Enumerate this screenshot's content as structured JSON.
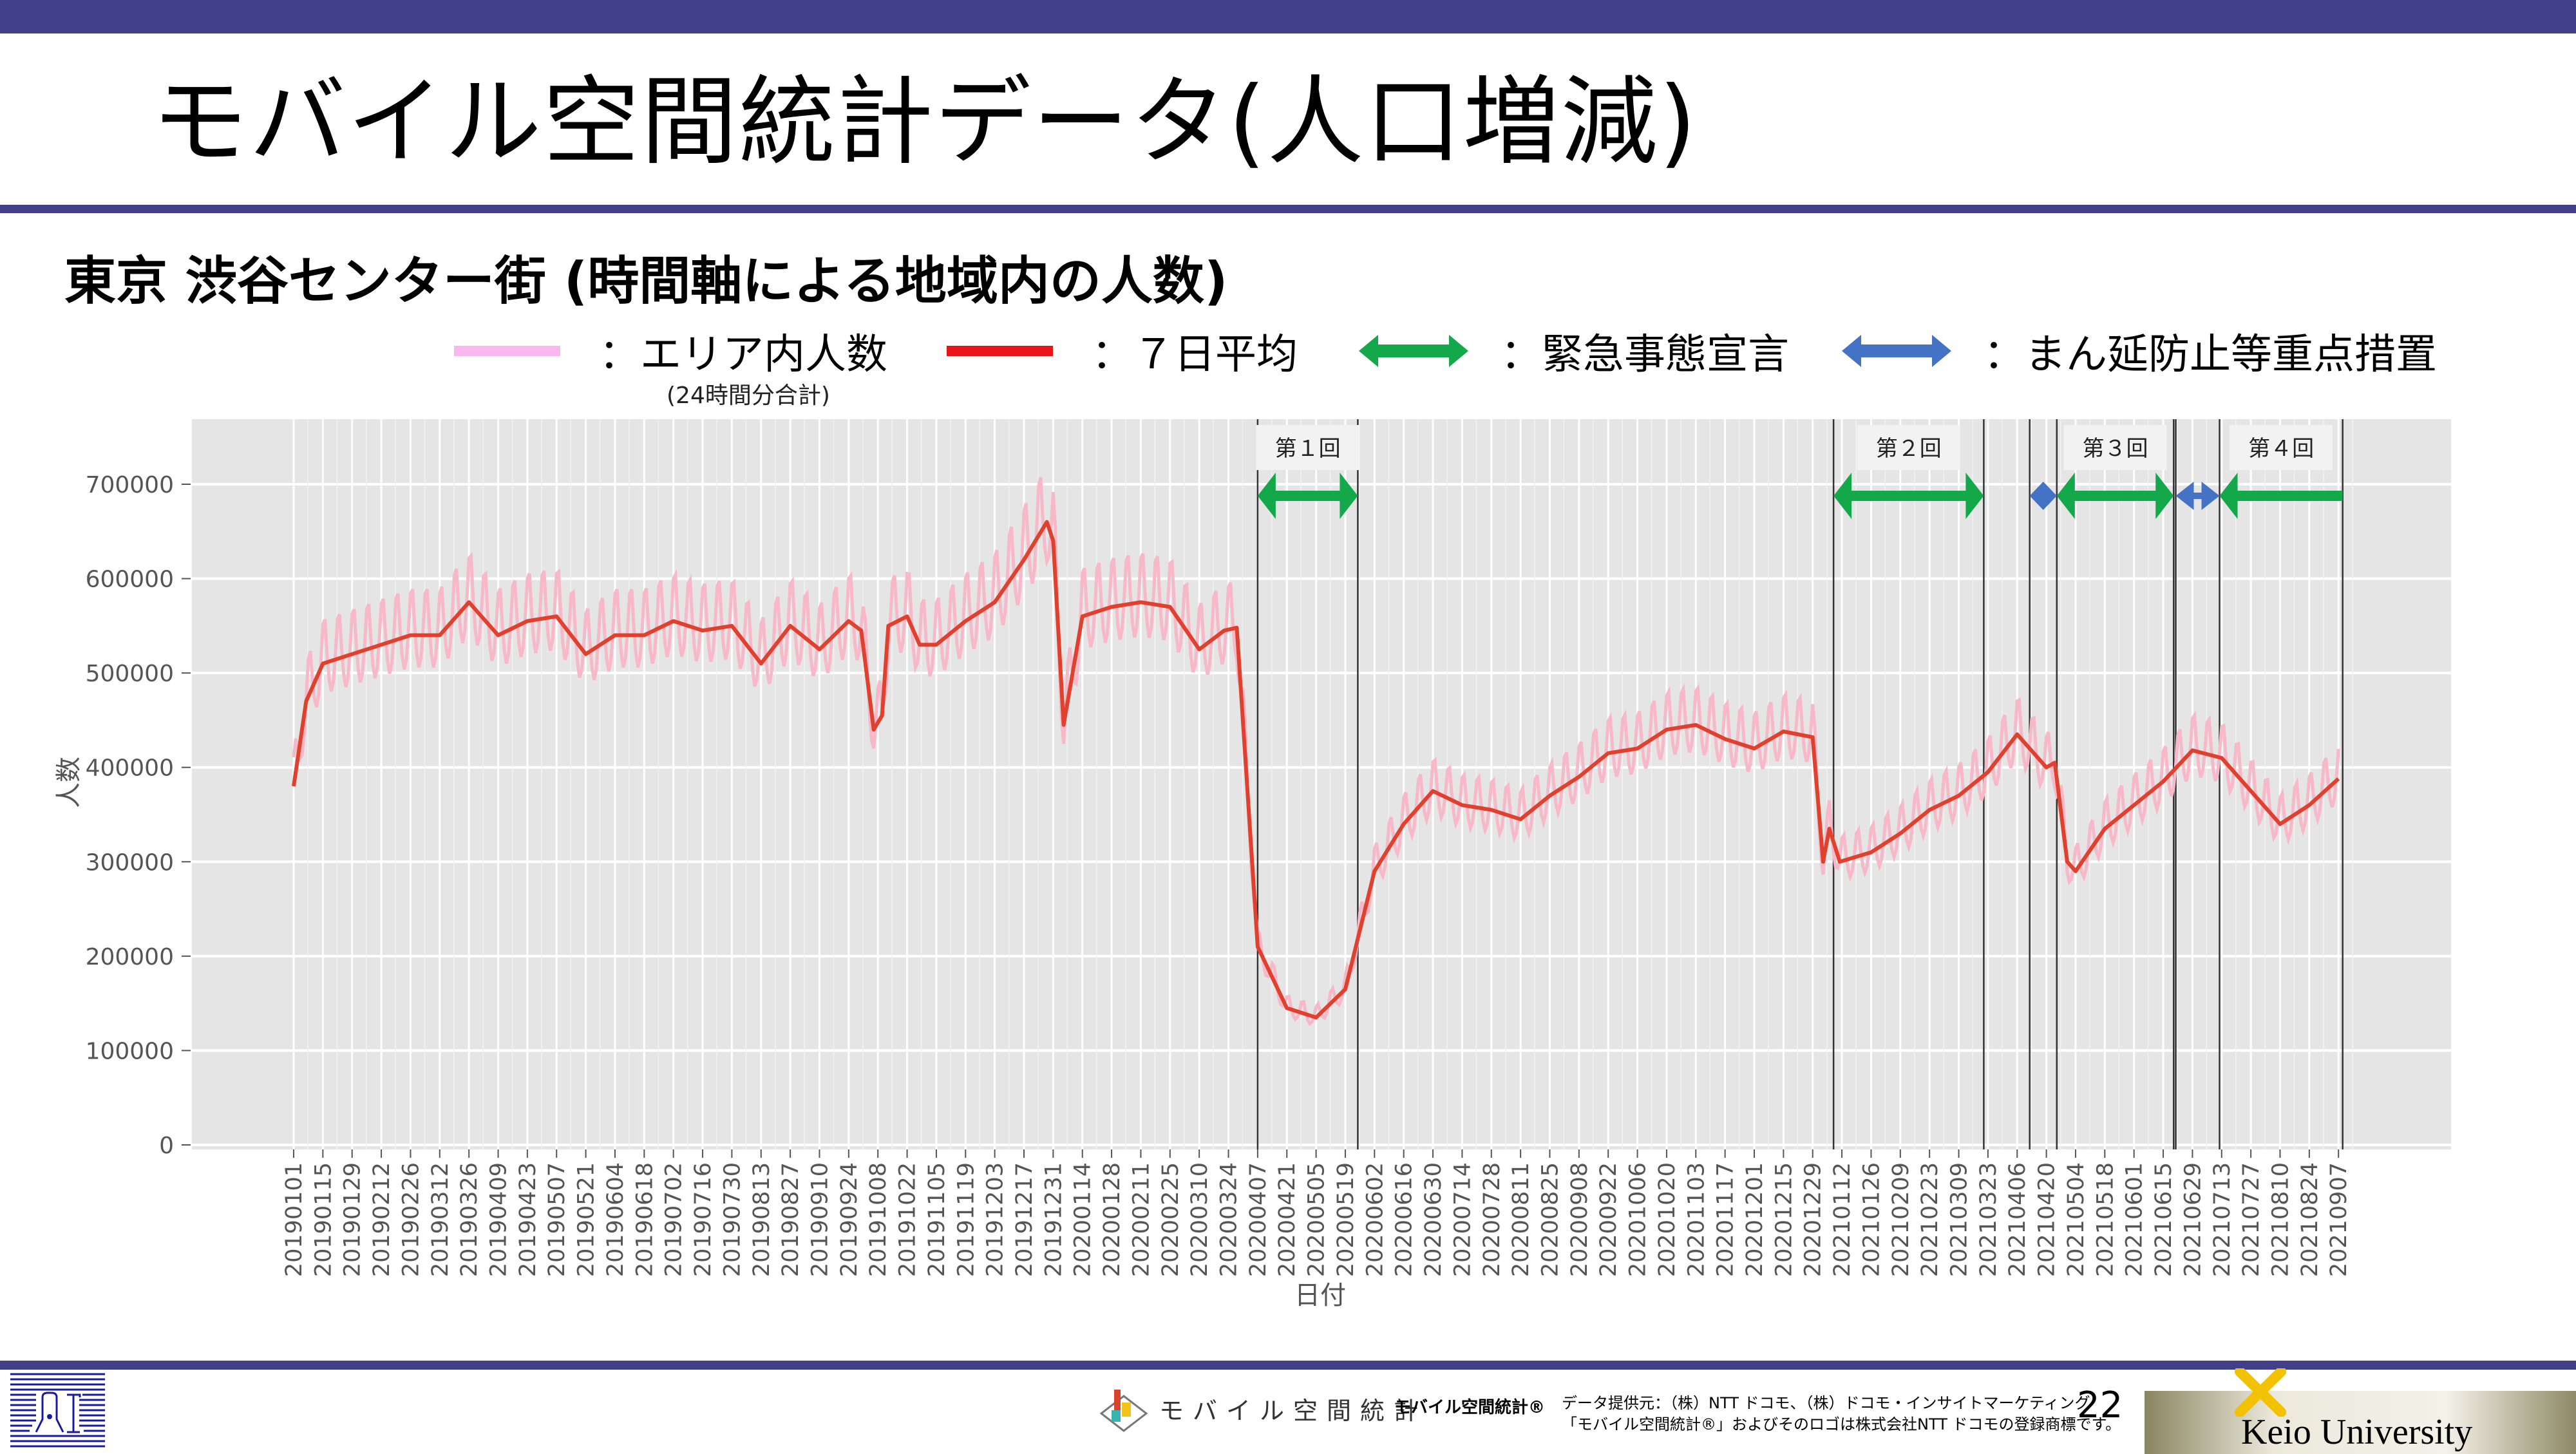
{
  "slide": {
    "title": "モバイル空間統計データ(人口増減)",
    "subtitle": "東京 渋谷センター街 (時間軸による地域内の人数)",
    "page_number": "22"
  },
  "legend": {
    "area_count": "：エリア内人数",
    "area_count_note": "(24時間分合計)",
    "avg7": "：７日平均",
    "emergency": "：緊急事態宣言",
    "semi_emergency": "：まん延防止等重点措置"
  },
  "colors": {
    "brand_band": "#413f87",
    "raw_line": "#f7b8c8",
    "avg_line": "#e0402e",
    "emergency_arrow": "#13a84a",
    "semi_arrow": "#4472c4",
    "plot_bg": "#e5e5e5"
  },
  "footer": {
    "logo_text": "モバイル空間統計",
    "trademark": "モバイル空間統計®",
    "credit_line1": "データ提供元：（株）NTT ドコモ、（株）ドコモ・インサイトマーケティング",
    "credit_line2": "「モバイル空間統計®」およびそのロゴは株式会社NTT ドコモの登録商標です。",
    "university": "Keio University"
  },
  "chart_data": {
    "type": "line",
    "xlabel": "日付",
    "ylabel": "人数",
    "ylim": [
      0,
      770000
    ],
    "y_ticks": [
      0,
      100000,
      200000,
      300000,
      400000,
      500000,
      600000,
      700000
    ],
    "x_unit": "days since 2019-01-01",
    "x_tick_labels": [
      "20190101",
      "20190115",
      "20190129",
      "20190212",
      "20190226",
      "20190312",
      "20190326",
      "20190409",
      "20190423",
      "20190507",
      "20190521",
      "20190604",
      "20190618",
      "20190702",
      "20190716",
      "20190730",
      "20190813",
      "20190827",
      "20190910",
      "20190924",
      "20191008",
      "20191022",
      "20191105",
      "20191119",
      "20191203",
      "20191217",
      "20191231",
      "20200114",
      "20200128",
      "20200211",
      "20200225",
      "20200310",
      "20200324",
      "20200407",
      "20200421",
      "20200505",
      "20200519",
      "20200602",
      "20200616",
      "20200630",
      "20200714",
      "20200728",
      "20200811",
      "20200825",
      "20200908",
      "20200922",
      "20201006",
      "20201020",
      "20201103",
      "20201117",
      "20201201",
      "20201215",
      "20201229",
      "20210112",
      "20210126",
      "20210209",
      "20210223",
      "20210309",
      "20210323",
      "20210406",
      "20210420",
      "20210504",
      "20210518",
      "20210601",
      "20210615",
      "20210629",
      "20210713",
      "20210727",
      "20210810",
      "20210824",
      "20210907"
    ],
    "x_tick_step_days": 14,
    "series": [
      {
        "name": "7日平均",
        "points": [
          [
            0,
            380000
          ],
          [
            6,
            470000
          ],
          [
            14,
            510000
          ],
          [
            28,
            520000
          ],
          [
            42,
            530000
          ],
          [
            56,
            540000
          ],
          [
            70,
            540000
          ],
          [
            84,
            575000
          ],
          [
            98,
            540000
          ],
          [
            112,
            555000
          ],
          [
            126,
            560000
          ],
          [
            140,
            520000
          ],
          [
            154,
            540000
          ],
          [
            168,
            540000
          ],
          [
            182,
            555000
          ],
          [
            196,
            545000
          ],
          [
            210,
            550000
          ],
          [
            224,
            510000
          ],
          [
            238,
            550000
          ],
          [
            252,
            525000
          ],
          [
            266,
            555000
          ],
          [
            272,
            545000
          ],
          [
            278,
            440000
          ],
          [
            282,
            455000
          ],
          [
            285,
            550000
          ],
          [
            294,
            560000
          ],
          [
            300,
            530000
          ],
          [
            308,
            530000
          ],
          [
            322,
            555000
          ],
          [
            336,
            575000
          ],
          [
            350,
            620000
          ],
          [
            361,
            660000
          ],
          [
            364,
            640000
          ],
          [
            369,
            445000
          ],
          [
            378,
            560000
          ],
          [
            392,
            570000
          ],
          [
            406,
            575000
          ],
          [
            420,
            570000
          ],
          [
            434,
            525000
          ],
          [
            446,
            545000
          ],
          [
            452,
            548000
          ],
          [
            462,
            210000
          ],
          [
            476,
            145000
          ],
          [
            490,
            135000
          ],
          [
            504,
            165000
          ],
          [
            518,
            290000
          ],
          [
            532,
            340000
          ],
          [
            546,
            375000
          ],
          [
            560,
            360000
          ],
          [
            574,
            355000
          ],
          [
            588,
            345000
          ],
          [
            602,
            370000
          ],
          [
            616,
            390000
          ],
          [
            630,
            415000
          ],
          [
            644,
            420000
          ],
          [
            658,
            440000
          ],
          [
            672,
            445000
          ],
          [
            686,
            430000
          ],
          [
            700,
            420000
          ],
          [
            714,
            438000
          ],
          [
            728,
            432000
          ],
          [
            733,
            300000
          ],
          [
            736,
            335000
          ],
          [
            741,
            300000
          ],
          [
            756,
            310000
          ],
          [
            770,
            330000
          ],
          [
            784,
            355000
          ],
          [
            798,
            370000
          ],
          [
            812,
            395000
          ],
          [
            826,
            435000
          ],
          [
            840,
            400000
          ],
          [
            844,
            405000
          ],
          [
            850,
            300000
          ],
          [
            854,
            290000
          ],
          [
            868,
            335000
          ],
          [
            882,
            360000
          ],
          [
            896,
            385000
          ],
          [
            910,
            418000
          ],
          [
            924,
            410000
          ],
          [
            938,
            375000
          ],
          [
            952,
            340000
          ],
          [
            966,
            360000
          ],
          [
            980,
            388000
          ]
        ]
      },
      {
        "name": "エリア内人数",
        "derived_from": "7日平均",
        "weekly_amplitude": 45000
      }
    ],
    "periods": [
      {
        "label": "第１回",
        "kind": "emergency",
        "start": 462,
        "end": 510
      },
      {
        "label": "第２回",
        "kind": "emergency",
        "start": 738,
        "end": 810
      },
      {
        "label": "",
        "kind": "semi",
        "start": 832,
        "end": 845
      },
      {
        "label": "第３回",
        "kind": "emergency",
        "start": 845,
        "end": 901
      },
      {
        "label": "",
        "kind": "semi",
        "start": 902,
        "end": 923
      },
      {
        "label": "第４回",
        "kind": "emergency",
        "start": 923,
        "end": 982
      }
    ],
    "grid": true
  }
}
